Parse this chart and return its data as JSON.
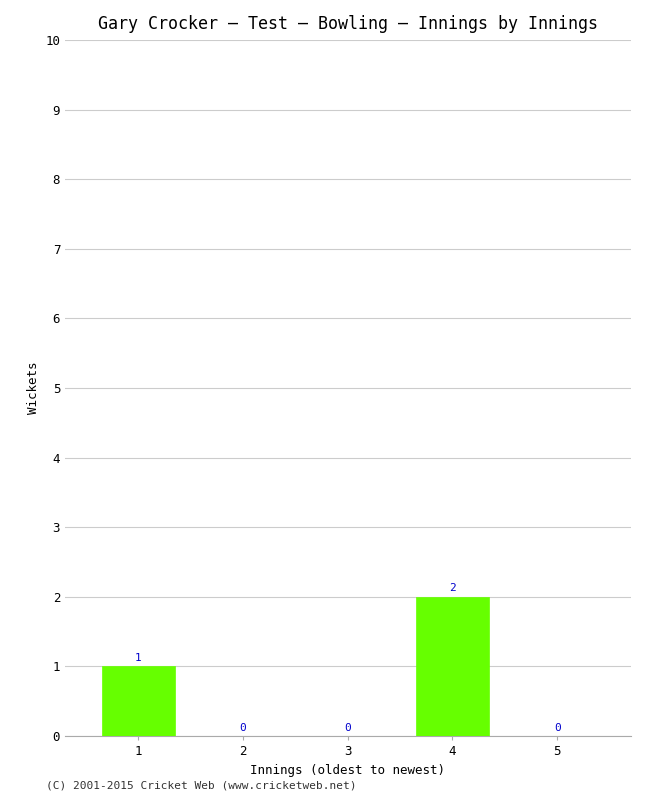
{
  "title": "Gary Crocker – Test – Bowling – Innings by Innings",
  "xlabel": "Innings (oldest to newest)",
  "ylabel": "Wickets",
  "categories": [
    1,
    2,
    3,
    4,
    5
  ],
  "values": [
    1,
    0,
    0,
    2,
    0
  ],
  "bar_color": "#66ff00",
  "bar_edge_color": "#66ff00",
  "ylim": [
    0,
    10
  ],
  "yticks": [
    0,
    1,
    2,
    3,
    4,
    5,
    6,
    7,
    8,
    9,
    10
  ],
  "xticks": [
    1,
    2,
    3,
    4,
    5
  ],
  "background_color": "#ffffff",
  "grid_color": "#cccccc",
  "annotation_color": "#0000cc",
  "footer": "(C) 2001-2015 Cricket Web (www.cricketweb.net)",
  "title_fontsize": 12,
  "axis_label_fontsize": 9,
  "tick_fontsize": 9,
  "annotation_fontsize": 8,
  "footer_fontsize": 8
}
